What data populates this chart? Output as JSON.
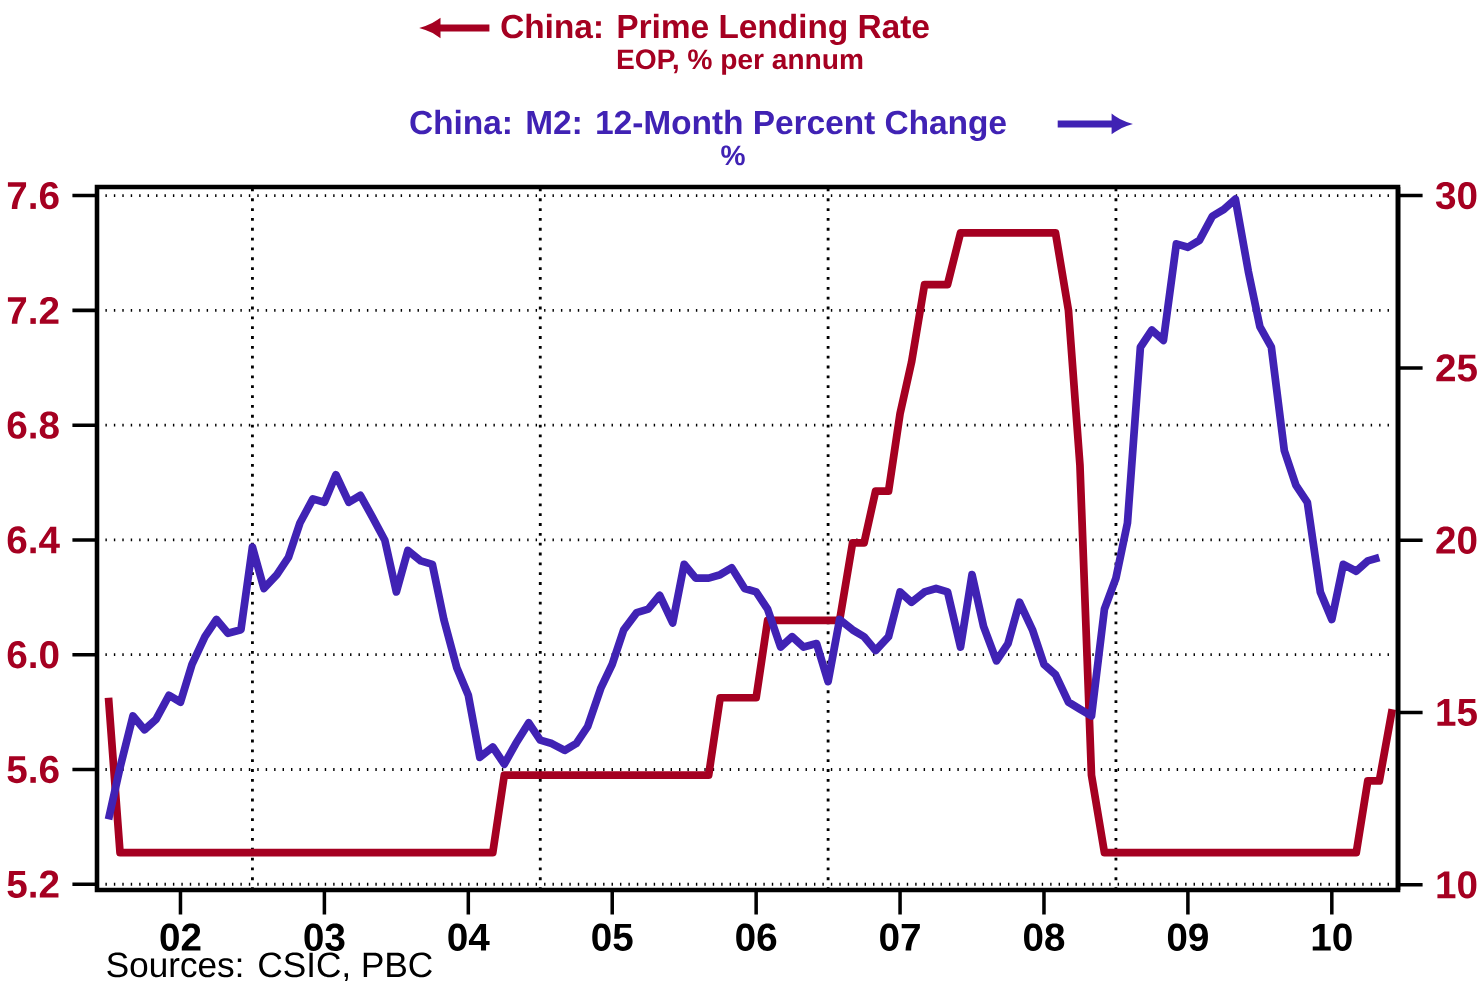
{
  "chart_data": {
    "type": "line",
    "x": [
      "2002-01",
      "2002-02",
      "2002-03",
      "2002-04",
      "2002-05",
      "2002-06",
      "2002-07",
      "2002-08",
      "2002-09",
      "2002-10",
      "2002-11",
      "2002-12",
      "2003-01",
      "2003-02",
      "2003-03",
      "2003-04",
      "2003-05",
      "2003-06",
      "2003-07",
      "2003-08",
      "2003-09",
      "2003-10",
      "2003-11",
      "2003-12",
      "2004-01",
      "2004-02",
      "2004-03",
      "2004-04",
      "2004-05",
      "2004-06",
      "2004-07",
      "2004-08",
      "2004-09",
      "2004-10",
      "2004-11",
      "2004-12",
      "2005-01",
      "2005-02",
      "2005-03",
      "2005-04",
      "2005-05",
      "2005-06",
      "2005-07",
      "2005-08",
      "2005-09",
      "2005-10",
      "2005-11",
      "2005-12",
      "2006-01",
      "2006-02",
      "2006-03",
      "2006-04",
      "2006-05",
      "2006-06",
      "2006-07",
      "2006-08",
      "2006-09",
      "2006-10",
      "2006-11",
      "2006-12",
      "2007-01",
      "2007-02",
      "2007-03",
      "2007-04",
      "2007-05",
      "2007-06",
      "2007-07",
      "2007-08",
      "2007-09",
      "2007-10",
      "2007-11",
      "2007-12",
      "2008-01",
      "2008-02",
      "2008-03",
      "2008-04",
      "2008-05",
      "2008-06",
      "2008-07",
      "2008-08",
      "2008-09",
      "2008-10",
      "2008-11",
      "2008-12",
      "2009-01",
      "2009-02",
      "2009-03",
      "2009-04",
      "2009-05",
      "2009-06",
      "2009-07",
      "2009-08",
      "2009-09",
      "2009-10",
      "2009-11",
      "2009-12",
      "2010-01",
      "2010-02",
      "2010-03",
      "2010-04",
      "2010-05",
      "2010-06",
      "2010-07",
      "2010-08",
      "2010-09",
      "2010-10",
      "2010-11",
      "2010-12"
    ],
    "series": [
      {
        "name": "China: Prime Lending Rate",
        "color": "#a50021",
        "axis": "y",
        "values": [
          5.85,
          5.31,
          5.31,
          5.31,
          5.31,
          5.31,
          5.31,
          5.31,
          5.31,
          5.31,
          5.31,
          5.31,
          5.31,
          5.31,
          5.31,
          5.31,
          5.31,
          5.31,
          5.31,
          5.31,
          5.31,
          5.31,
          5.31,
          5.31,
          5.31,
          5.31,
          5.31,
          5.31,
          5.31,
          5.31,
          5.31,
          5.31,
          5.31,
          5.58,
          5.58,
          5.58,
          5.58,
          5.58,
          5.58,
          5.58,
          5.58,
          5.58,
          5.58,
          5.58,
          5.58,
          5.58,
          5.58,
          5.58,
          5.58,
          5.58,
          5.58,
          5.85,
          5.85,
          5.85,
          5.85,
          6.12,
          6.12,
          6.12,
          6.12,
          6.12,
          6.12,
          6.12,
          6.39,
          6.39,
          6.57,
          6.57,
          6.84,
          7.02,
          7.29,
          7.29,
          7.29,
          7.47,
          7.47,
          7.47,
          7.47,
          7.47,
          7.47,
          7.47,
          7.47,
          7.47,
          7.2,
          6.66,
          5.58,
          5.31,
          5.31,
          5.31,
          5.31,
          5.31,
          5.31,
          5.31,
          5.31,
          5.31,
          5.31,
          5.31,
          5.31,
          5.31,
          5.31,
          5.31,
          5.31,
          5.31,
          5.31,
          5.31,
          5.31,
          5.31,
          5.31,
          5.56,
          5.56,
          5.81
        ]
      },
      {
        "name": "China: M2: 12-Month Percent Change",
        "color": "#4022b4",
        "axis": "y2",
        "values": [
          11.9,
          13.4,
          14.9,
          14.5,
          14.8,
          15.5,
          15.3,
          16.4,
          17.2,
          17.7,
          17.3,
          17.4,
          19.8,
          18.6,
          19.0,
          19.5,
          20.5,
          21.2,
          21.1,
          21.9,
          21.1,
          21.3,
          20.7,
          20.0,
          18.5,
          19.7,
          19.4,
          19.3,
          17.7,
          16.3,
          15.5,
          13.7,
          14.0,
          13.5,
          14.1,
          14.7,
          14.2,
          14.1,
          13.9,
          14.1,
          14.6,
          15.7,
          16.4,
          17.4,
          17.9,
          18.0,
          18.4,
          17.6,
          19.3,
          18.9,
          18.9,
          19.0,
          19.2,
          18.6,
          18.5,
          18.0,
          16.9,
          17.2,
          16.9,
          17.0,
          15.9,
          17.7,
          17.4,
          17.2,
          16.8,
          17.2,
          18.5,
          18.2,
          18.5,
          18.6,
          18.5,
          16.9,
          19.0,
          17.5,
          16.5,
          17.0,
          18.2,
          17.4,
          16.4,
          16.1,
          15.3,
          15.1,
          14.9,
          18.0,
          18.9,
          20.5,
          25.6,
          26.1,
          25.8,
          28.6,
          28.5,
          28.7,
          29.4,
          29.6,
          29.9,
          27.8,
          26.2,
          25.6,
          22.6,
          21.6,
          21.1,
          18.5,
          17.7,
          19.3,
          19.1,
          19.4,
          19.5,
          null
        ]
      }
    ],
    "ylabel": "EOP, % per annum",
    "annotations": [
      "Sources:  CSIC, PBC",
      "%"
    ],
    "xlim": [
      "2001-12-04",
      "2010-12-17"
    ],
    "xticks": [
      {
        "value": "2002-07-01",
        "label": "02"
      },
      {
        "value": "2003-07-01",
        "label": "03"
      },
      {
        "value": "2004-07-01",
        "label": "04"
      },
      {
        "value": "2005-07-01",
        "label": "05"
      },
      {
        "value": "2006-07-01",
        "label": "06"
      },
      {
        "value": "2007-07-01",
        "label": "07"
      },
      {
        "value": "2008-07-01",
        "label": "08"
      },
      {
        "value": "2009-07-01",
        "label": "09"
      },
      {
        "value": "2010-07-01",
        "label": "10"
      }
    ],
    "ylim": [
      5.18,
      7.63
    ],
    "yticks": [
      5.2,
      5.6,
      {
        "value": 6,
        "label": "6.0"
      },
      6.4,
      6.8,
      7.2,
      7.6
    ],
    "y2lim": [
      9.85,
      30.25
    ],
    "y2ticks": [
      10,
      15,
      20,
      25,
      30
    ],
    "ref_lines": [
      {
        "axis": "x",
        "value": "2003-01-01",
        "color": "#000000",
        "line_style": "dotted"
      },
      {
        "axis": "x",
        "value": "2005-01-01",
        "color": "#000000",
        "line_style": "dotted"
      },
      {
        "axis": "x",
        "value": "2007-01-01",
        "color": "#000000",
        "line_style": "dotted"
      },
      {
        "axis": "x",
        "value": "2009-01-01",
        "color": "#000000",
        "line_style": "dotted"
      }
    ],
    "grid": "y",
    "legend": "top",
    "marker": "none",
    "line_style": "solid"
  }
}
